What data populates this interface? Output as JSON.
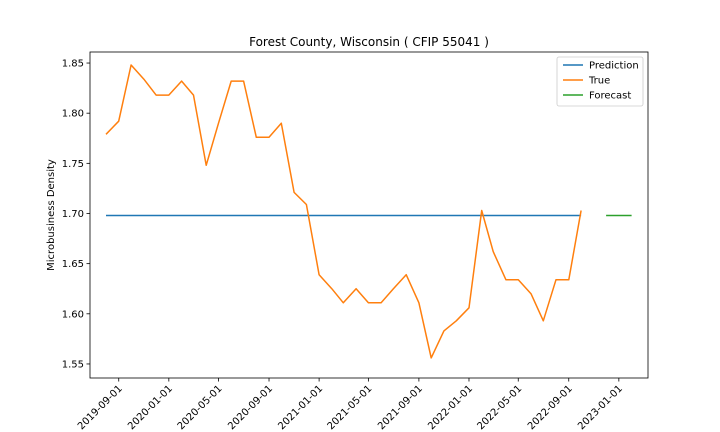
{
  "chart_data": {
    "type": "line",
    "title": "Forest County, Wisconsin ( CFIP 55041 )",
    "xlabel": "",
    "ylabel": "Microbusiness Density",
    "x_axis": {
      "kind": "date",
      "range": [
        "2019-06-23",
        "2023-03-13"
      ],
      "ticks": [
        "2019-09-01",
        "2020-01-01",
        "2020-05-01",
        "2020-09-01",
        "2021-01-01",
        "2021-05-01",
        "2021-09-01",
        "2022-01-01",
        "2022-05-01",
        "2022-09-01",
        "2023-01-01"
      ]
    },
    "y_axis": {
      "range": [
        1.536,
        1.861
      ],
      "ticks": [
        "1.55",
        "1.60",
        "1.65",
        "1.70",
        "1.75",
        "1.80",
        "1.85"
      ]
    },
    "grid": false,
    "legend": {
      "placement": "top-right",
      "entries": [
        {
          "name": "Prediction",
          "color": "#1f77b4"
        },
        {
          "name": "True",
          "color": "#ff7f0e"
        },
        {
          "name": "Forecast",
          "color": "#2ca02c"
        }
      ]
    },
    "series": [
      {
        "name": "Prediction",
        "color": "#1f77b4",
        "x": [
          "2019-08-01",
          "2022-10-01"
        ],
        "y": [
          1.698,
          1.698
        ]
      },
      {
        "name": "True",
        "color": "#ff7f0e",
        "x": [
          "2019-08-01",
          "2019-09-01",
          "2019-10-01",
          "2019-11-01",
          "2019-12-01",
          "2020-01-01",
          "2020-02-01",
          "2020-03-01",
          "2020-04-01",
          "2020-05-01",
          "2020-06-01",
          "2020-07-01",
          "2020-08-01",
          "2020-09-01",
          "2020-10-01",
          "2020-11-01",
          "2020-12-01",
          "2021-01-01",
          "2021-02-01",
          "2021-03-01",
          "2021-04-01",
          "2021-05-01",
          "2021-06-01",
          "2021-07-01",
          "2021-08-01",
          "2021-09-01",
          "2021-10-01",
          "2021-11-01",
          "2021-12-01",
          "2022-01-01",
          "2022-02-01",
          "2022-03-01",
          "2022-04-01",
          "2022-05-01",
          "2022-06-01",
          "2022-07-01",
          "2022-08-01",
          "2022-09-01",
          "2022-10-01"
        ],
        "y": [
          1.779,
          1.792,
          1.848,
          1.834,
          1.818,
          1.818,
          1.832,
          1.818,
          1.748,
          1.79,
          1.832,
          1.832,
          1.776,
          1.776,
          1.79,
          1.721,
          1.709,
          1.639,
          1.625,
          1.611,
          1.625,
          1.611,
          1.611,
          1.625,
          1.639,
          1.611,
          1.556,
          1.583,
          1.593,
          1.606,
          1.703,
          1.662,
          1.634,
          1.634,
          1.62,
          1.593,
          1.634,
          1.634,
          1.703
        ]
      },
      {
        "name": "Forecast",
        "color": "#2ca02c",
        "x": [
          "2022-12-01",
          "2023-02-01"
        ],
        "y": [
          1.698,
          1.698
        ]
      }
    ]
  }
}
